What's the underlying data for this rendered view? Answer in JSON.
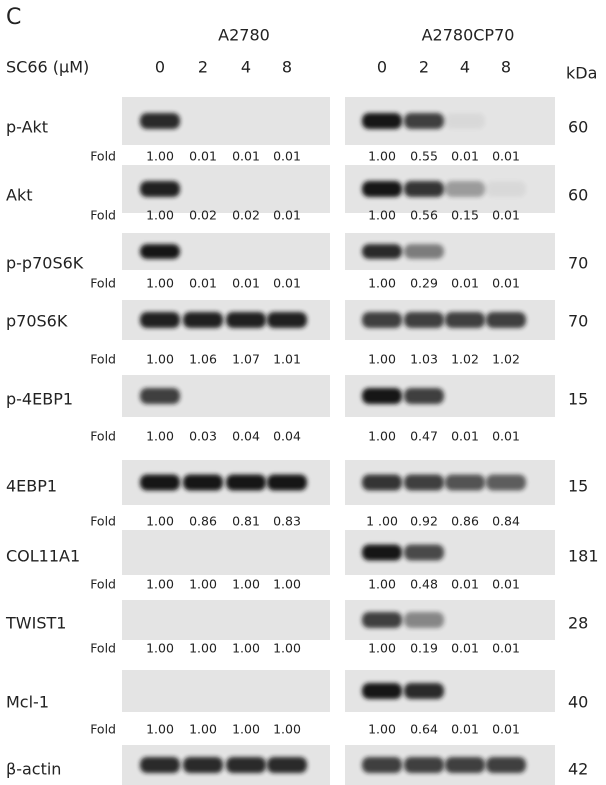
{
  "panel_label": "C",
  "cell_lines": [
    "A2780",
    "A2780CP70"
  ],
  "treatment_label": "SC66 (μM)",
  "doses": [
    [
      "0",
      "2",
      "4",
      "8"
    ],
    [
      "0",
      "2",
      "4",
      "8"
    ]
  ],
  "kda_label": "kDa",
  "fold_label": "Fold",
  "rows": [
    {
      "label": "p-Akt",
      "kda": "60",
      "folds": [
        [
          "1.00",
          "0.01",
          "0.01",
          "0.01"
        ],
        [
          "1.00",
          "0.55",
          "0.01",
          "0.01"
        ]
      ]
    },
    {
      "label": "Akt",
      "kda": "60",
      "folds": [
        [
          "1.00",
          "0.02",
          "0.02",
          "0.01"
        ],
        [
          "1.00",
          "0.56",
          "0.15",
          "0.01"
        ]
      ]
    },
    {
      "label": "p-p70S6K",
      "kda": "70",
      "folds": [
        [
          "1.00",
          "0.01",
          "0.01",
          "0.01"
        ],
        [
          "1.00",
          "0.29",
          "0.01",
          "0.01"
        ]
      ]
    },
    {
      "label": "p70S6K",
      "kda": "70",
      "folds": [
        [
          "1.00",
          "1.06",
          "1.07",
          "1.01"
        ],
        [
          "1.00",
          "1.03",
          "1.02",
          "1.02"
        ]
      ]
    },
    {
      "label": "p-4EBP1",
      "kda": "15",
      "folds": [
        [
          "1.00",
          "0.03",
          "0.04",
          "0.04"
        ],
        [
          "1.00",
          "0.47",
          "0.01",
          "0.01"
        ]
      ]
    },
    {
      "label": "4EBP1",
      "kda": "15",
      "folds": [
        [
          "1.00",
          "0.86",
          "0.81",
          "0.83"
        ],
        [
          "1 .00",
          "0.92",
          "0.86",
          "0.84"
        ]
      ]
    },
    {
      "label": "COL11A1",
      "kda": "181",
      "folds": [
        [
          "1.00",
          "1.00",
          "1.00",
          "1.00"
        ],
        [
          "1.00",
          "0.48",
          "0.01",
          "0.01"
        ]
      ]
    },
    {
      "label": "TWIST1",
      "kda": "28",
      "folds": [
        [
          "1.00",
          "1.00",
          "1.00",
          "1.00"
        ],
        [
          "1.00",
          "0.19",
          "0.01",
          "0.01"
        ]
      ]
    },
    {
      "label": "Mcl-1",
      "kda": "40",
      "folds": [
        [
          "1.00",
          "1.00",
          "1.00",
          "1.00"
        ],
        [
          "1.00",
          "0.64",
          "0.01",
          "0.01"
        ]
      ]
    },
    {
      "label": "β-actin",
      "kda": "42"
    }
  ]
}
